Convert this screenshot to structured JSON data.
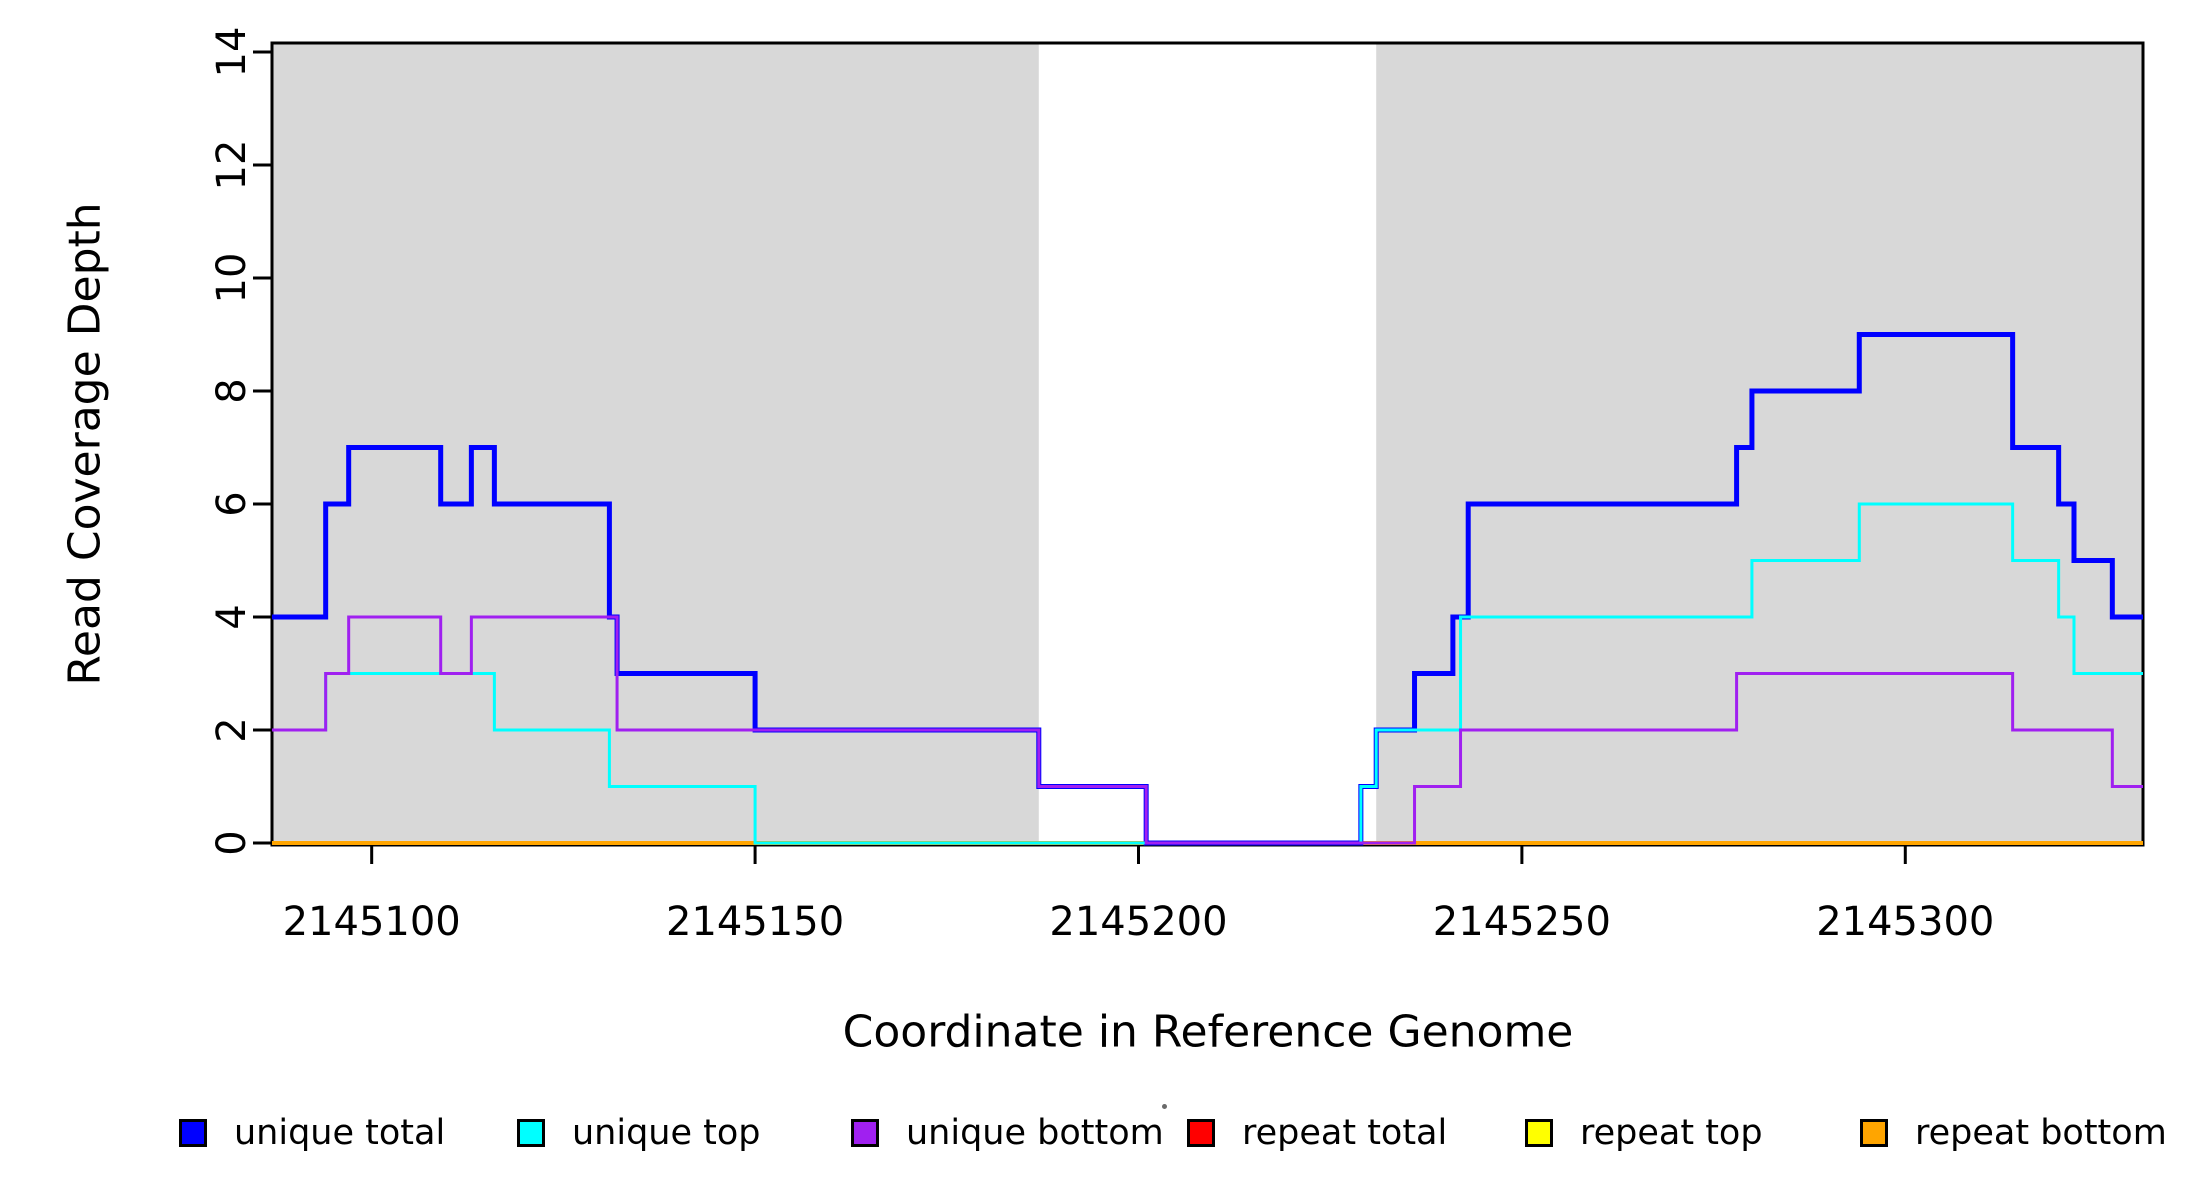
{
  "chart_data": {
    "type": "line",
    "subtype": "step",
    "title": "",
    "xlabel": "Coordinate in Reference Genome",
    "ylabel": "Read Coverage Depth",
    "xlim": [
      2145087,
      2145331
    ],
    "ylim": [
      0,
      14
    ],
    "xticks": [
      2145100,
      2145150,
      2145200,
      2145250,
      2145300
    ],
    "yticks": [
      0,
      2,
      4,
      6,
      8,
      10,
      12,
      14
    ],
    "grid": false,
    "legend_position": "bottom",
    "background_color": "#FFFFFF",
    "shaded_region_color": "#D8D8D8",
    "shaded_regions": [
      [
        2145087,
        2145187
      ],
      [
        2145231,
        2145331
      ]
    ],
    "series": [
      {
        "name": "repeat total",
        "color": "#FF0000",
        "line_width": 3,
        "steps": [
          [
            2145087,
            0
          ]
        ]
      },
      {
        "name": "repeat top",
        "color": "#FFFF00",
        "line_width": 3,
        "steps": [
          [
            2145087,
            0
          ]
        ]
      },
      {
        "name": "repeat bottom",
        "color": "#FFA500",
        "line_width": 4,
        "steps": [
          [
            2145087,
            0
          ]
        ]
      },
      {
        "name": "unique total",
        "color": "#0000FF",
        "line_width": 5,
        "steps": [
          [
            2145087,
            4
          ],
          [
            2145094,
            6
          ],
          [
            2145097,
            7
          ],
          [
            2145109,
            6
          ],
          [
            2145113,
            7
          ],
          [
            2145116,
            6
          ],
          [
            2145131,
            4
          ],
          [
            2145132,
            3
          ],
          [
            2145150,
            2
          ],
          [
            2145187,
            1
          ],
          [
            2145201,
            0
          ],
          [
            2145229,
            1
          ],
          [
            2145231,
            2
          ],
          [
            2145236,
            3
          ],
          [
            2145241,
            4
          ],
          [
            2145243,
            6
          ],
          [
            2145278,
            7
          ],
          [
            2145280,
            8
          ],
          [
            2145294,
            9
          ],
          [
            2145314,
            7
          ],
          [
            2145320,
            6
          ],
          [
            2145322,
            5
          ],
          [
            2145327,
            4
          ]
        ]
      },
      {
        "name": "unique top",
        "color": "#00FFFF",
        "line_width": 3,
        "steps": [
          [
            2145087,
            2
          ],
          [
            2145094,
            3
          ],
          [
            2145116,
            2
          ],
          [
            2145131,
            1
          ],
          [
            2145150,
            0
          ],
          [
            2145229,
            1
          ],
          [
            2145231,
            2
          ],
          [
            2145242,
            4
          ],
          [
            2145280,
            5
          ],
          [
            2145294,
            6
          ],
          [
            2145314,
            5
          ],
          [
            2145320,
            4
          ],
          [
            2145322,
            3
          ]
        ]
      },
      {
        "name": "unique bottom",
        "color": "#A020F0",
        "line_width": 3,
        "steps": [
          [
            2145087,
            2
          ],
          [
            2145094,
            3
          ],
          [
            2145097,
            4
          ],
          [
            2145109,
            3
          ],
          [
            2145113,
            4
          ],
          [
            2145132,
            2
          ],
          [
            2145187,
            1
          ],
          [
            2145201,
            0
          ],
          [
            2145236,
            1
          ],
          [
            2145242,
            2
          ],
          [
            2145278,
            3
          ],
          [
            2145314,
            2
          ],
          [
            2145327,
            1
          ]
        ]
      }
    ],
    "legend": [
      {
        "label": "unique total",
        "color": "#0000FF"
      },
      {
        "label": "unique top",
        "color": "#00FFFF"
      },
      {
        "label": "unique bottom",
        "color": "#A020F0"
      },
      {
        "label": "repeat total",
        "color": "#FF0000"
      },
      {
        "label": "repeat top",
        "color": "#FFFF00"
      },
      {
        "label": "repeat bottom",
        "color": "#FFA500"
      }
    ]
  }
}
